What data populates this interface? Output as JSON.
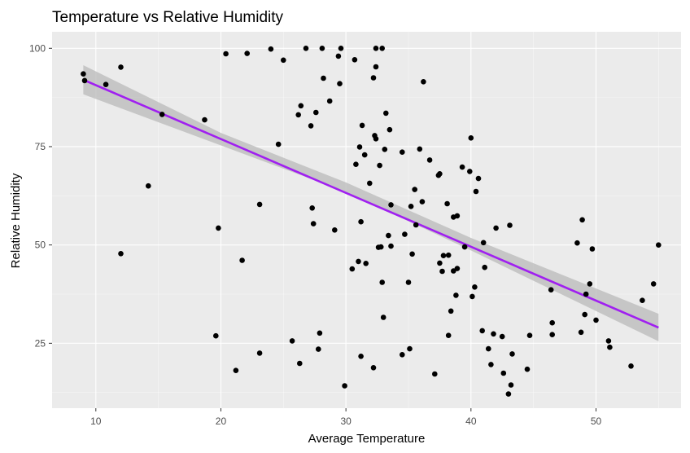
{
  "chart_data": {
    "type": "scatter",
    "title": "Temperature vs Relative Humidity",
    "xlabel": "Average Temperature",
    "ylabel": "Relative Humidity",
    "xlim": [
      6.5,
      56.8
    ],
    "ylim": [
      8.5,
      104.2
    ],
    "xticks": [
      10,
      20,
      30,
      40,
      50
    ],
    "yticks": [
      25,
      50,
      75,
      100
    ],
    "grid": true,
    "colors": {
      "panel": "#ebebeb",
      "grid_major": "#ffffff",
      "points": "#000000",
      "fit_line": "#a020f0",
      "ribbon": "#bdbdbd"
    },
    "points": [
      [
        9.0,
        93.5
      ],
      [
        9.1,
        91.8
      ],
      [
        10.8,
        90.8
      ],
      [
        12.0,
        95.2
      ],
      [
        12.0,
        47.8
      ],
      [
        14.2,
        65.0
      ],
      [
        15.3,
        83.2
      ],
      [
        18.7,
        81.8
      ],
      [
        19.6,
        26.9
      ],
      [
        19.8,
        54.3
      ],
      [
        20.4,
        98.6
      ],
      [
        21.2,
        18.1
      ],
      [
        21.7,
        46.1
      ],
      [
        22.1,
        98.7
      ],
      [
        23.1,
        60.3
      ],
      [
        23.1,
        22.5
      ],
      [
        24.0,
        99.8
      ],
      [
        24.6,
        75.6
      ],
      [
        25.0,
        97.0
      ],
      [
        25.7,
        25.6
      ],
      [
        26.2,
        83.1
      ],
      [
        26.3,
        19.9
      ],
      [
        26.4,
        85.4
      ],
      [
        26.8,
        100.0
      ],
      [
        27.2,
        80.3
      ],
      [
        27.3,
        59.4
      ],
      [
        27.4,
        55.4
      ],
      [
        27.6,
        83.7
      ],
      [
        27.8,
        23.5
      ],
      [
        27.9,
        27.6
      ],
      [
        28.1,
        100.0
      ],
      [
        28.2,
        92.4
      ],
      [
        28.7,
        86.6
      ],
      [
        29.1,
        53.8
      ],
      [
        29.4,
        98.0
      ],
      [
        29.5,
        91.0
      ],
      [
        29.6,
        100.0
      ],
      [
        29.9,
        14.2
      ],
      [
        30.5,
        43.9
      ],
      [
        30.7,
        97.1
      ],
      [
        30.8,
        70.5
      ],
      [
        31.0,
        45.8
      ],
      [
        31.1,
        74.9
      ],
      [
        31.2,
        55.9
      ],
      [
        31.2,
        21.7
      ],
      [
        31.3,
        80.4
      ],
      [
        31.5,
        72.9
      ],
      [
        31.6,
        45.3
      ],
      [
        31.9,
        65.7
      ],
      [
        32.2,
        92.5
      ],
      [
        32.2,
        18.8
      ],
      [
        32.3,
        77.8
      ],
      [
        32.4,
        100.0
      ],
      [
        32.4,
        95.3
      ],
      [
        32.4,
        77.0
      ],
      [
        32.6,
        49.4
      ],
      [
        32.7,
        70.2
      ],
      [
        32.8,
        49.5
      ],
      [
        32.9,
        100.0
      ],
      [
        32.9,
        40.5
      ],
      [
        33.0,
        31.6
      ],
      [
        33.1,
        74.3
      ],
      [
        33.2,
        83.5
      ],
      [
        33.4,
        52.4
      ],
      [
        33.5,
        79.3
      ],
      [
        33.6,
        49.7
      ],
      [
        33.6,
        60.2
      ],
      [
        34.5,
        73.6
      ],
      [
        34.5,
        22.1
      ],
      [
        34.7,
        52.7
      ],
      [
        35.0,
        40.5
      ],
      [
        35.1,
        23.6
      ],
      [
        35.2,
        59.8
      ],
      [
        35.3,
        47.7
      ],
      [
        35.5,
        64.1
      ],
      [
        35.6,
        55.1
      ],
      [
        35.9,
        74.4
      ],
      [
        36.1,
        61.0
      ],
      [
        36.2,
        91.5
      ],
      [
        36.7,
        71.6
      ],
      [
        37.1,
        17.2
      ],
      [
        37.4,
        67.7
      ],
      [
        37.5,
        68.1
      ],
      [
        37.5,
        45.4
      ],
      [
        37.7,
        43.3
      ],
      [
        37.8,
        47.3
      ],
      [
        38.1,
        60.5
      ],
      [
        38.2,
        27.0
      ],
      [
        38.2,
        47.4
      ],
      [
        38.4,
        33.2
      ],
      [
        38.6,
        57.1
      ],
      [
        38.6,
        43.4
      ],
      [
        38.8,
        37.2
      ],
      [
        38.9,
        57.4
      ],
      [
        38.9,
        44.0
      ],
      [
        39.3,
        69.8
      ],
      [
        39.5,
        49.5
      ],
      [
        39.9,
        68.7
      ],
      [
        40.0,
        77.2
      ],
      [
        40.1,
        36.9
      ],
      [
        40.3,
        39.3
      ],
      [
        40.4,
        63.6
      ],
      [
        40.6,
        66.9
      ],
      [
        40.9,
        28.2
      ],
      [
        41.0,
        50.6
      ],
      [
        41.1,
        44.3
      ],
      [
        41.4,
        23.6
      ],
      [
        41.6,
        19.6
      ],
      [
        41.8,
        27.4
      ],
      [
        42.0,
        54.3
      ],
      [
        42.5,
        26.7
      ],
      [
        42.6,
        17.4
      ],
      [
        43.0,
        12.1
      ],
      [
        43.1,
        55.0
      ],
      [
        43.2,
        14.4
      ],
      [
        43.3,
        22.3
      ],
      [
        44.5,
        18.4
      ],
      [
        44.7,
        27.0
      ],
      [
        46.4,
        38.6
      ],
      [
        46.5,
        27.2
      ],
      [
        46.5,
        30.2
      ],
      [
        48.5,
        50.5
      ],
      [
        48.8,
        27.8
      ],
      [
        48.9,
        56.4
      ],
      [
        49.1,
        32.3
      ],
      [
        49.2,
        37.5
      ],
      [
        49.5,
        40.1
      ],
      [
        49.7,
        49.0
      ],
      [
        50.0,
        30.9
      ],
      [
        51.0,
        25.6
      ],
      [
        51.1,
        24.0
      ],
      [
        52.8,
        19.2
      ],
      [
        53.7,
        35.9
      ],
      [
        54.6,
        40.1
      ],
      [
        55.0,
        50.0
      ]
    ],
    "fit": {
      "x": [
        9.0,
        55.0
      ],
      "y": [
        92.0,
        29.0
      ]
    },
    "band": [
      {
        "x": 9.0,
        "lower": 88.3,
        "upper": 95.7
      },
      {
        "x": 20.0,
        "lower": 75.3,
        "upper": 78.5
      },
      {
        "x": 30.0,
        "lower": 63.5,
        "upper": 65.9
      },
      {
        "x": 40.0,
        "lower": 48.6,
        "upper": 51.8
      },
      {
        "x": 55.0,
        "lower": 25.5,
        "upper": 32.5
      }
    ]
  }
}
